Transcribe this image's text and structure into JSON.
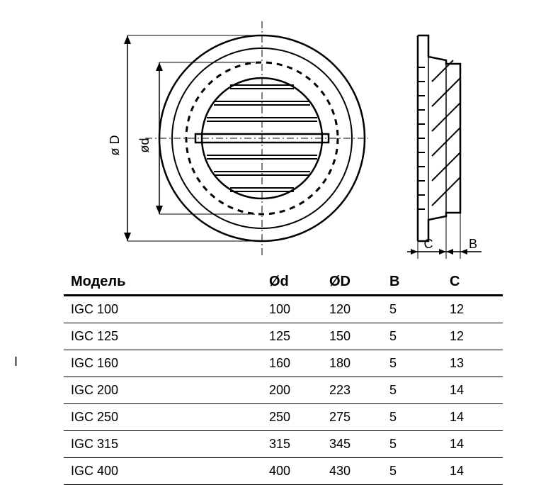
{
  "diagram": {
    "labels": {
      "outer_diameter": "ø D",
      "inner_diameter": "ød",
      "depth_c": "C",
      "depth_b": "B"
    },
    "stroke_color": "#000000",
    "stroke_width": 2,
    "background": "#ffffff"
  },
  "table": {
    "headers": {
      "model": "Модель",
      "d": "Ød",
      "D": "ØD",
      "B": "B",
      "C": "C"
    },
    "rows": [
      {
        "model": "IGC 100",
        "d": "100",
        "D": "120",
        "B": "5",
        "C": "12"
      },
      {
        "model": "IGC 125",
        "d": "125",
        "D": "150",
        "B": "5",
        "C": "12"
      },
      {
        "model": "IGC 160",
        "d": "160",
        "D": "180",
        "B": "5",
        "C": "13"
      },
      {
        "model": "IGC 200",
        "d": "200",
        "D": "223",
        "B": "5",
        "C": "14"
      },
      {
        "model": "IGC 250",
        "d": "250",
        "D": "275",
        "B": "5",
        "C": "14"
      },
      {
        "model": "IGC 315",
        "d": "315",
        "D": "345",
        "B": "5",
        "C": "14"
      },
      {
        "model": "IGC 400",
        "d": "400",
        "D": "430",
        "B": "5",
        "C": "14"
      }
    ]
  },
  "side_marker": "I"
}
